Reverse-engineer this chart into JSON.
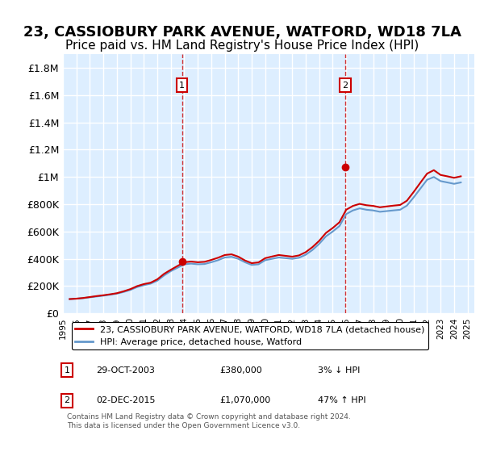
{
  "title": "23, CASSIOBURY PARK AVENUE, WATFORD, WD18 7LA",
  "subtitle": "Price paid vs. HM Land Registry's House Price Index (HPI)",
  "title_fontsize": 13,
  "subtitle_fontsize": 11,
  "background_color": "#ffffff",
  "plot_bg_color": "#ddeeff",
  "grid_color": "#ffffff",
  "line1_color": "#cc0000",
  "line2_color": "#6699cc",
  "line1_label": "23, CASSIOBURY PARK AVENUE, WATFORD, WD18 7LA (detached house)",
  "line2_label": "HPI: Average price, detached house, Watford",
  "ylim": [
    0,
    1900000
  ],
  "yticks": [
    0,
    200000,
    400000,
    600000,
    800000,
    1000000,
    1200000,
    1400000,
    1600000,
    1800000
  ],
  "ytick_labels": [
    "£0",
    "£200K",
    "£400K",
    "£600K",
    "£800K",
    "£1M",
    "£1.2M",
    "£1.4M",
    "£1.6M",
    "£1.8M"
  ],
  "sale1_year": 2003.83,
  "sale1_price": 380000,
  "sale2_year": 2015.92,
  "sale2_price": 1070000,
  "footer": "Contains HM Land Registry data © Crown copyright and database right 2024.\nThis data is licensed under the Open Government Licence v3.0.",
  "annotation1_date": "29-OCT-2003",
  "annotation1_price": "£380,000",
  "annotation1_hpi": "3% ↓ HPI",
  "annotation2_date": "02-DEC-2015",
  "annotation2_price": "£1,070,000",
  "annotation2_hpi": "47% ↑ HPI",
  "hpi_data": {
    "years": [
      1995.5,
      1996.0,
      1996.5,
      1997.0,
      1997.5,
      1998.0,
      1998.5,
      1999.0,
      1999.5,
      2000.0,
      2000.5,
      2001.0,
      2001.5,
      2002.0,
      2002.5,
      2003.0,
      2003.5,
      2004.0,
      2004.5,
      2005.0,
      2005.5,
      2006.0,
      2006.5,
      2007.0,
      2007.5,
      2008.0,
      2008.5,
      2009.0,
      2009.5,
      2010.0,
      2010.5,
      2011.0,
      2011.5,
      2012.0,
      2012.5,
      2013.0,
      2013.5,
      2014.0,
      2014.5,
      2015.0,
      2015.5,
      2016.0,
      2016.5,
      2017.0,
      2017.5,
      2018.0,
      2018.5,
      2019.0,
      2019.5,
      2020.0,
      2020.5,
      2021.0,
      2021.5,
      2022.0,
      2022.5,
      2023.0,
      2023.5,
      2024.0,
      2024.5
    ],
    "values": [
      105000,
      108000,
      112000,
      118000,
      124000,
      130000,
      137000,
      145000,
      157000,
      172000,
      193000,
      207000,
      218000,
      240000,
      278000,
      310000,
      335000,
      360000,
      365000,
      360000,
      362000,
      375000,
      390000,
      410000,
      415000,
      400000,
      375000,
      355000,
      360000,
      390000,
      400000,
      410000,
      405000,
      400000,
      408000,
      430000,
      465000,
      510000,
      565000,
      600000,
      640000,
      728000,
      755000,
      770000,
      760000,
      755000,
      745000,
      750000,
      755000,
      760000,
      790000,
      850000,
      915000,
      980000,
      1000000,
      970000,
      960000,
      950000,
      960000
    ]
  },
  "price_paid_data": {
    "years": [
      1995.5,
      1996.0,
      1996.5,
      1997.0,
      1997.5,
      1998.0,
      1998.5,
      1999.0,
      1999.5,
      2000.0,
      2000.5,
      2001.0,
      2001.5,
      2002.0,
      2002.5,
      2003.0,
      2003.5,
      2004.0,
      2004.5,
      2005.0,
      2005.5,
      2006.0,
      2006.5,
      2007.0,
      2007.5,
      2008.0,
      2008.5,
      2009.0,
      2009.5,
      2010.0,
      2010.5,
      2011.0,
      2011.5,
      2012.0,
      2012.5,
      2013.0,
      2013.5,
      2014.0,
      2014.5,
      2015.0,
      2015.5,
      2016.0,
      2016.5,
      2017.0,
      2017.5,
      2018.0,
      2018.5,
      2019.0,
      2019.5,
      2020.0,
      2020.5,
      2021.0,
      2021.5,
      2022.0,
      2022.5,
      2023.0,
      2023.5,
      2024.0,
      2024.5
    ],
    "values": [
      105000,
      108000,
      113000,
      120000,
      127000,
      133000,
      140000,
      148000,
      162000,
      178000,
      200000,
      215000,
      225000,
      250000,
      290000,
      320000,
      348000,
      375000,
      380000,
      375000,
      378000,
      392000,
      408000,
      428000,
      433000,
      416000,
      388000,
      368000,
      374000,
      405000,
      417000,
      428000,
      422000,
      416000,
      425000,
      449000,
      486000,
      532000,
      590000,
      626000,
      668000,
      760000,
      788000,
      803000,
      793000,
      788000,
      778000,
      784000,
      790000,
      795000,
      826000,
      890000,
      958000,
      1025000,
      1050000,
      1015000,
      1005000,
      994000,
      1005000
    ]
  }
}
